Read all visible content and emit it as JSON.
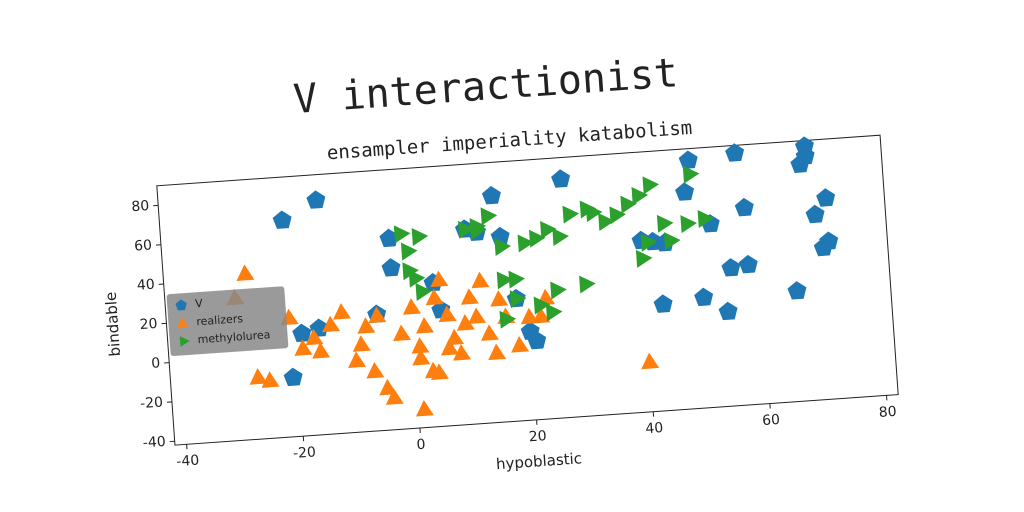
{
  "chart_data": {
    "type": "scatter",
    "title": "V interactionist",
    "subtitle": "ensampler imperiality katabolism",
    "x_label": "hypoblastic",
    "y_label": "bindable",
    "xlim": [
      -42,
      82
    ],
    "ylim": [
      -42,
      90
    ],
    "xticks": [
      -40,
      -20,
      0,
      20,
      40,
      60,
      80
    ],
    "yticks": [
      -40,
      -20,
      0,
      20,
      40,
      60,
      80
    ],
    "legend_loc": "center left",
    "series": [
      {
        "name": "V",
        "color": "#1f77b4",
        "marker": "pentagon",
        "x": [
          -21,
          -15,
          -16,
          -19,
          -21,
          -6,
          -3,
          -3,
          4,
          5,
          10,
          15,
          12,
          18,
          21,
          20,
          27,
          40,
          44,
          43,
          48,
          49,
          50,
          52,
          54,
          55,
          57,
          58,
          58,
          66,
          68,
          69,
          69,
          70,
          71,
          72,
          72,
          16,
          42
        ],
        "y": [
          68,
          77,
          12,
          10,
          -12,
          17,
          55,
          40,
          31,
          17,
          57,
          73,
          55,
          20,
          -2,
          3,
          79,
          45,
          43,
          12,
          68,
          84,
          14,
          51,
          6,
          28,
          86,
          58,
          29,
          14,
          78,
          87,
          82,
          52,
          35,
          38,
          60,
          52,
          44
        ]
      },
      {
        "name": "realizers",
        "color": "#ff7f0e",
        "marker": "triangle-up",
        "x": [
          -28,
          -30,
          -27,
          -25,
          -21,
          -19,
          -17,
          -16,
          -14,
          -12,
          -10,
          -9,
          -8,
          -7,
          -6,
          -5,
          -4,
          -2,
          0,
          1,
          2,
          1,
          3,
          1,
          4,
          5,
          6,
          7,
          8,
          9,
          10,
          11,
          12,
          13,
          14,
          15,
          16,
          18,
          20,
          22,
          23,
          40,
          4,
          6
        ],
        "y": [
          42,
          30,
          -11,
          -13,
          18,
          2,
          7,
          0,
          13,
          19,
          -6,
          2,
          11,
          -12,
          16,
          -21,
          -26,
          6,
          19,
          -1,
          9,
          -7,
          -14,
          -33,
          23,
          32,
          14,
          2,
          -6,
          9,
          22,
          12,
          30,
          3,
          -7,
          20,
          11,
          -4,
          10,
          10,
          19,
          -17,
          -15,
          -3
        ]
      },
      {
        "name": "methylolurea",
        "color": "#2ca02c",
        "marker": "triangle-right",
        "x": [
          -1,
          0,
          2,
          0,
          1,
          2,
          10,
          12,
          14,
          16,
          18,
          20,
          22,
          24,
          25,
          26,
          28,
          31,
          32,
          34,
          36,
          38,
          40,
          42,
          44,
          45,
          48,
          49,
          51,
          40,
          41,
          30,
          16,
          18,
          16,
          22,
          24,
          12
        ],
        "y": [
          57,
          48,
          55,
          38,
          34,
          27,
          57,
          58,
          63,
          47,
          30,
          48,
          50,
          54,
          23,
          50,
          61,
          63,
          61,
          56,
          59,
          64,
          68,
          73,
          53,
          44,
          52,
          77,
          54,
          36,
          44,
          25,
          30,
          20,
          10,
          16,
          12,
          56
        ]
      }
    ]
  }
}
